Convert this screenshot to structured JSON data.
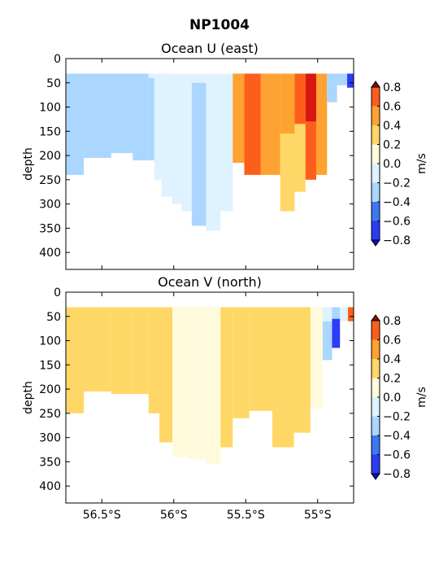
{
  "figure_title": "NP1004",
  "colors": {
    "levels": [
      "#2b3cf5",
      "#3c78f5",
      "#aad6ff",
      "#dff2ff",
      "#fffadc",
      "#ffd766",
      "#fea232",
      "#fe5e1c",
      "#d8180e"
    ],
    "under": "#0f0fc8",
    "over": "#8a0a0a"
  },
  "chart_data": [
    {
      "type": "heatmap",
      "title": "Ocean U (east)",
      "ylabel": "depth",
      "xlabel": "",
      "x_ticks": [
        "56.5°S",
        "56°S",
        "55.5°S",
        "55°S"
      ],
      "x_tick_values": [
        -56.5,
        -56.0,
        -55.5,
        -55.0
      ],
      "xlim": [
        -56.75,
        -54.75
      ],
      "y_ticks": [
        "0",
        "50",
        "100",
        "150",
        "200",
        "250",
        "300",
        "350",
        "400"
      ],
      "ylim": [
        0,
        435
      ],
      "y_inverted": true,
      "colorbar": {
        "label": "m/s",
        "boundaries": [
          -0.8,
          -0.6,
          -0.4,
          -0.2,
          0.0,
          0.2,
          0.4,
          0.6,
          0.8
        ],
        "tick_labels": [
          "−0.8",
          "−0.6",
          "−0.4",
          "−0.2",
          "0.0",
          "0.2",
          "0.4",
          "0.6",
          "0.8"
        ],
        "extend": "both"
      },
      "columns": [
        {
          "lat": -56.75,
          "bottom": 240,
          "segments": [
            {
              "to": 240,
              "c": 2
            }
          ]
        },
        {
          "lat": -56.5,
          "bottom": 205,
          "segments": [
            {
              "to": 205,
              "c": 2
            }
          ]
        },
        {
          "lat": -56.37,
          "bottom": 195,
          "segments": [
            {
              "to": 195,
              "c": 2
            }
          ]
        },
        {
          "lat": -56.2,
          "bottom": 210,
          "segments": [
            {
              "to": 210,
              "c": 2
            }
          ]
        },
        {
          "lat": -56.15,
          "bottom": 210,
          "segments": [
            {
              "to": 40,
              "c": 3
            },
            {
              "to": 210,
              "c": 2
            }
          ]
        },
        {
          "lat": -56.12,
          "bottom": 250,
          "segments": [
            {
              "to": 250,
              "c": 3
            }
          ]
        },
        {
          "lat": -56.05,
          "bottom": 285,
          "segments": [
            {
              "to": 285,
              "c": 3
            }
          ]
        },
        {
          "lat": -55.97,
          "bottom": 300,
          "segments": [
            {
              "to": 300,
              "c": 3
            }
          ]
        },
        {
          "lat": -55.92,
          "bottom": 315,
          "segments": [
            {
              "to": 315,
              "c": 3
            }
          ]
        },
        {
          "lat": -55.83,
          "bottom": 345,
          "segments": [
            {
              "to": 50,
              "c": 3
            },
            {
              "to": 345,
              "c": 2
            }
          ]
        },
        {
          "lat": -55.72,
          "bottom": 355,
          "segments": [
            {
              "to": 355,
              "c": 3
            }
          ]
        },
        {
          "lat": -55.63,
          "bottom": 315,
          "segments": [
            {
              "to": 315,
              "c": 3
            }
          ]
        },
        {
          "lat": -55.55,
          "bottom": 215,
          "segments": [
            {
              "to": 215,
              "c": 6
            }
          ]
        },
        {
          "lat": -55.47,
          "bottom": 240,
          "segments": [
            {
              "to": 240,
              "c": 7
            }
          ]
        },
        {
          "lat": -55.32,
          "bottom": 240,
          "segments": [
            {
              "to": 240,
              "c": 6
            }
          ]
        },
        {
          "lat": -55.2,
          "bottom": 315,
          "segments": [
            {
              "to": 155,
              "c": 6
            },
            {
              "to": 315,
              "c": 5
            }
          ]
        },
        {
          "lat": -55.12,
          "bottom": 275,
          "segments": [
            {
              "to": 135,
              "c": 7
            },
            {
              "to": 275,
              "c": 5
            }
          ]
        },
        {
          "lat": -55.05,
          "bottom": 250,
          "segments": [
            {
              "to": 130,
              "c": 8
            },
            {
              "to": 250,
              "c": 7
            }
          ]
        },
        {
          "lat": -54.97,
          "bottom": 240,
          "segments": [
            {
              "to": 240,
              "c": 6
            }
          ]
        },
        {
          "lat": -54.9,
          "bottom": 90,
          "segments": [
            {
              "to": 90,
              "c": 2
            }
          ]
        },
        {
          "lat": -54.83,
          "bottom": 55,
          "segments": [
            {
              "to": 55,
              "c": 2
            }
          ]
        },
        {
          "lat": -54.76,
          "bottom": 60,
          "segments": [
            {
              "to": 60,
              "c": 0
            }
          ]
        }
      ]
    },
    {
      "type": "heatmap",
      "title": "Ocean V (north)",
      "ylabel": "depth",
      "xlabel": "",
      "x_ticks": [
        "56.5°S",
        "56°S",
        "55.5°S",
        "55°S"
      ],
      "x_tick_values": [
        -56.5,
        -56.0,
        -55.5,
        -55.0
      ],
      "xlim": [
        -56.75,
        -54.75
      ],
      "y_ticks": [
        "0",
        "50",
        "100",
        "150",
        "200",
        "250",
        "300",
        "350",
        "400"
      ],
      "ylim": [
        0,
        435
      ],
      "y_inverted": true,
      "colorbar": {
        "label": "m/s",
        "boundaries": [
          -0.8,
          -0.6,
          -0.4,
          -0.2,
          0.0,
          0.2,
          0.4,
          0.6,
          0.8
        ],
        "tick_labels": [
          "−0.8",
          "−0.6",
          "−0.4",
          "−0.2",
          "0.0",
          "0.2",
          "0.4",
          "0.6",
          "0.8"
        ],
        "extend": "both"
      },
      "columns": [
        {
          "lat": -56.75,
          "bottom": 250,
          "segments": [
            {
              "to": 250,
              "c": 5
            }
          ]
        },
        {
          "lat": -56.5,
          "bottom": 205,
          "segments": [
            {
              "to": 205,
              "c": 5
            }
          ]
        },
        {
          "lat": -56.37,
          "bottom": 210,
          "segments": [
            {
              "to": 210,
              "c": 5
            }
          ]
        },
        {
          "lat": -56.2,
          "bottom": 210,
          "segments": [
            {
              "to": 210,
              "c": 5
            }
          ]
        },
        {
          "lat": -56.15,
          "bottom": 250,
          "segments": [
            {
              "to": 250,
              "c": 5
            }
          ]
        },
        {
          "lat": -56.05,
          "bottom": 310,
          "segments": [
            {
              "to": 310,
              "c": 5
            }
          ]
        },
        {
          "lat": -55.97,
          "bottom": 340,
          "segments": [
            {
              "to": 340,
              "c": 4
            }
          ]
        },
        {
          "lat": -55.83,
          "bottom": 345,
          "segments": [
            {
              "to": 345,
              "c": 4
            }
          ]
        },
        {
          "lat": -55.72,
          "bottom": 355,
          "segments": [
            {
              "to": 355,
              "c": 4
            }
          ]
        },
        {
          "lat": -55.63,
          "bottom": 320,
          "segments": [
            {
              "to": 320,
              "c": 5
            }
          ]
        },
        {
          "lat": -55.55,
          "bottom": 260,
          "segments": [
            {
              "to": 260,
              "c": 5
            }
          ]
        },
        {
          "lat": -55.4,
          "bottom": 245,
          "segments": [
            {
              "to": 245,
              "c": 5
            }
          ]
        },
        {
          "lat": -55.23,
          "bottom": 320,
          "segments": [
            {
              "to": 320,
              "c": 5
            }
          ]
        },
        {
          "lat": -55.1,
          "bottom": 290,
          "segments": [
            {
              "to": 290,
              "c": 5
            }
          ]
        },
        {
          "lat": -55.0,
          "bottom": 240,
          "segments": [
            {
              "to": 240,
              "c": 4
            }
          ]
        },
        {
          "lat": -54.93,
          "bottom": 140,
          "segments": [
            {
              "to": 60,
              "c": 3
            },
            {
              "to": 140,
              "c": 2
            }
          ]
        },
        {
          "lat": -54.87,
          "bottom": 115,
          "segments": [
            {
              "to": 55,
              "c": 2
            },
            {
              "to": 115,
              "c": 0
            }
          ]
        },
        {
          "lat": -54.82,
          "bottom": 60,
          "segments": [
            {
              "to": 60,
              "c": 3
            }
          ]
        },
        {
          "lat": -54.76,
          "bottom": 60,
          "segments": [
            {
              "to": 60,
              "c": 7
            }
          ]
        }
      ]
    }
  ]
}
